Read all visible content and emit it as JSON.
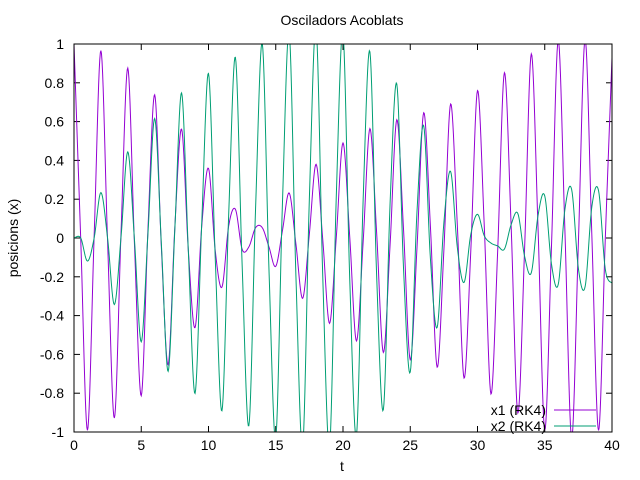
{
  "chart_data": {
    "type": "line",
    "title": "Osciladors Acoblats",
    "xlabel": "t",
    "ylabel": "posicions (x)",
    "xlim": [
      0,
      40
    ],
    "ylim": [
      -1,
      1
    ],
    "xticks": [
      0,
      5,
      10,
      15,
      20,
      25,
      30,
      35,
      40
    ],
    "yticks": [
      -1,
      -0.8,
      -0.6,
      -0.4,
      -0.2,
      0,
      0.2,
      0.4,
      0.6,
      0.8,
      1
    ],
    "xtick_labels": [
      "0",
      "5",
      "10",
      "15",
      "20",
      "25",
      "30",
      "35",
      "40"
    ],
    "ytick_labels": [
      "-1",
      "-0.8",
      "-0.6",
      "-0.4",
      "-0.2",
      "0",
      "0.2",
      "0.4",
      "0.6",
      "0.8",
      "1"
    ],
    "grid": false,
    "legend_position": "bottom-right",
    "series": [
      {
        "name": "x1 (RK4)",
        "color": "#9400d3",
        "x": [
          0,
          0.5,
          1,
          1.5,
          2,
          2.5,
          3,
          3.5,
          4,
          4.5,
          5,
          5.5,
          6,
          6.5,
          7,
          7.5,
          8,
          8.5,
          9,
          9.5,
          10,
          10.5,
          11,
          11.5,
          12,
          12.5,
          13,
          13.5,
          14,
          14.5,
          15,
          15.5,
          16,
          16.5,
          17,
          17.5,
          18,
          18.5,
          19,
          19.5,
          20,
          20.5,
          21,
          21.5,
          22,
          22.5,
          23,
          23.5,
          24,
          24.5,
          25,
          25.5,
          26,
          26.5,
          27,
          27.5,
          28,
          28.5,
          29,
          29.5,
          30,
          30.5,
          31,
          31.5,
          32,
          32.5,
          33,
          33.5,
          34,
          34.5,
          35,
          35.5,
          36,
          36.5,
          37,
          37.5,
          38,
          38.5,
          39,
          39.5,
          40
        ],
        "values": [
          1.0,
          -0.005,
          -0.991,
          0.015,
          0.966,
          -0.025,
          -0.928,
          0.034,
          0.876,
          -0.042,
          -0.813,
          0.049,
          0.738,
          -0.055,
          -0.653,
          0.06,
          0.561,
          -0.063,
          -0.462,
          0.064,
          0.359,
          -0.064,
          -0.253,
          0.062,
          0.148,
          -0.058,
          -0.046,
          0.053,
          0.053,
          -0.047,
          -0.146,
          0.039,
          0.232,
          -0.031,
          -0.311,
          0.022,
          0.38,
          -0.013,
          -0.44,
          0.003,
          0.49,
          0.007,
          -0.531,
          -0.017,
          0.564,
          0.027,
          -0.59,
          -0.036,
          0.61,
          0.044,
          -0.628,
          -0.052,
          0.646,
          0.058,
          -0.666,
          -0.063,
          0.691,
          0.066,
          -0.722,
          -0.068,
          0.76,
          0.068,
          -0.804,
          -0.066,
          0.852,
          0.063,
          -0.902,
          -0.058,
          0.949,
          0.052,
          -0.99,
          -0.044,
          1.019,
          0.036,
          -1.033,
          -0.026,
          1.025,
          0.016,
          -0.992,
          -0.006,
          0.929
        ]
      },
      {
        "name": "x2 (RK4)",
        "color": "#009e73",
        "x": [
          0,
          0.5,
          1,
          1.5,
          2,
          2.5,
          3,
          3.5,
          4,
          4.5,
          5,
          5.5,
          6,
          6.5,
          7,
          7.5,
          8,
          8.5,
          9,
          9.5,
          10,
          10.5,
          11,
          11.5,
          12,
          12.5,
          13,
          13.5,
          14,
          14.5,
          15,
          15.5,
          16,
          16.5,
          17,
          17.5,
          18,
          18.5,
          19,
          19.5,
          20,
          20.5,
          21,
          21.5,
          22,
          22.5,
          23,
          23.5,
          24,
          24.5,
          25,
          25.5,
          26,
          26.5,
          27,
          27.5,
          28,
          28.5,
          29,
          29.5,
          30,
          30.5,
          31,
          31.5,
          32,
          32.5,
          33,
          33.5,
          34,
          34.5,
          35,
          35.5,
          36,
          36.5,
          37,
          37.5,
          38,
          38.5,
          39,
          39.5,
          40
        ],
        "values": [
          0.0,
          0.0,
          -0.119,
          0.001,
          0.234,
          -0.003,
          -0.343,
          0.008,
          0.444,
          -0.015,
          -0.535,
          0.025,
          0.616,
          -0.037,
          -0.687,
          0.05,
          0.748,
          -0.066,
          -0.801,
          0.083,
          0.848,
          -0.101,
          -0.891,
          0.119,
          0.931,
          -0.137,
          -0.968,
          0.154,
          1.002,
          -0.171,
          -1.033,
          0.185,
          1.058,
          -0.197,
          -1.076,
          0.206,
          1.083,
          -0.211,
          -1.077,
          0.213,
          1.056,
          -0.21,
          -1.017,
          0.203,
          0.96,
          -0.192,
          -0.885,
          0.177,
          0.794,
          -0.157,
          -0.691,
          0.134,
          0.578,
          -0.108,
          -0.461,
          0.079,
          0.343,
          -0.049,
          -0.229,
          0.018,
          0.122,
          0.012,
          -0.026,
          -0.041,
          -0.057,
          0.069,
          0.126,
          -0.094,
          -0.179,
          0.116,
          0.217,
          -0.134,
          -0.24,
          0.148,
          0.25,
          -0.157,
          -0.251,
          0.161,
          0.244,
          -0.16,
          -0.233
        ]
      }
    ]
  }
}
